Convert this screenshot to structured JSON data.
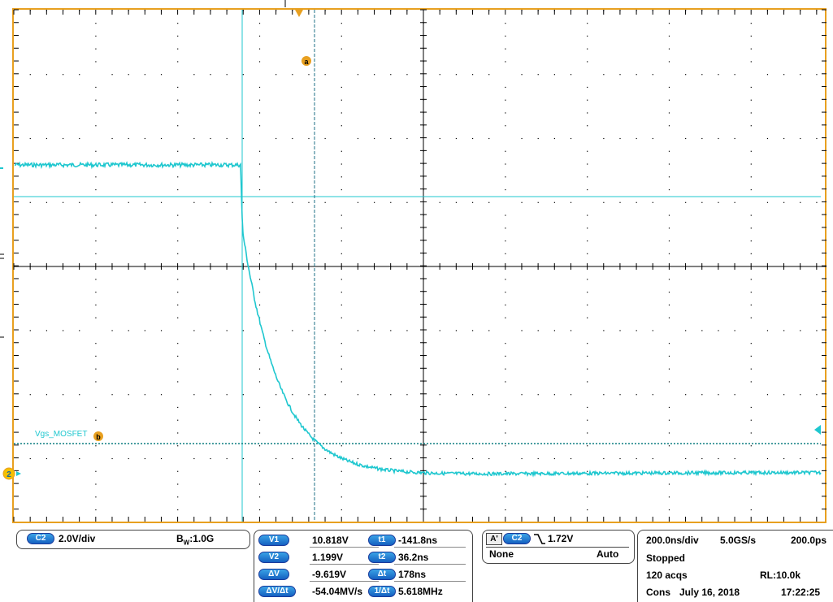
{
  "colors": {
    "grid": "#000000",
    "frame": "#e8a020",
    "trace": "#1fc7cf",
    "cursor": "#1c6f86",
    "pill": "#1560c0",
    "highlight": "#e81818"
  },
  "screen": {
    "trace_label": "Vgs_MOSFET",
    "cursor_a": "a",
    "cursor_b": "b",
    "channel_marker": "2"
  },
  "channel": {
    "badge": "C2",
    "scale": "2.0V/div",
    "bw_prefix": "B",
    "bw_sub": "W",
    "bw_value": ":1.0G"
  },
  "cursors": {
    "v1_badge": "V1",
    "v1_value": "10.818V",
    "v2_badge": "V2",
    "v2_value": "1.199V",
    "dv_badge": "ΔV",
    "dv_value": "-9.619V",
    "dvdt_badge": "ΔV/Δt",
    "dvdt_value": "-54.04MV/s",
    "t1_badge": "t1",
    "t1_value": "-141.8ns",
    "t2_badge": "t2",
    "t2_value": "36.2ns",
    "dt_badge": "Δt",
    "dt_value": "178ns",
    "freq_badge": "1/Δt",
    "freq_value": "5.618MHz"
  },
  "trigger": {
    "mode_badge": "A'",
    "source_badge": "C2",
    "slope_icon": "falling-edge-icon",
    "level": "1.72V",
    "coupling": "None",
    "sweep": "Auto"
  },
  "acquisition": {
    "timebase": "200.0ns/div",
    "sample_rate": "5.0GS/s",
    "position": "200.0ps",
    "state": "Stopped",
    "acqs": "120 acqs",
    "record_length": "RL:10.0k",
    "mode": "Cons",
    "date": "July 16, 2018",
    "time": "17:22:25"
  }
}
